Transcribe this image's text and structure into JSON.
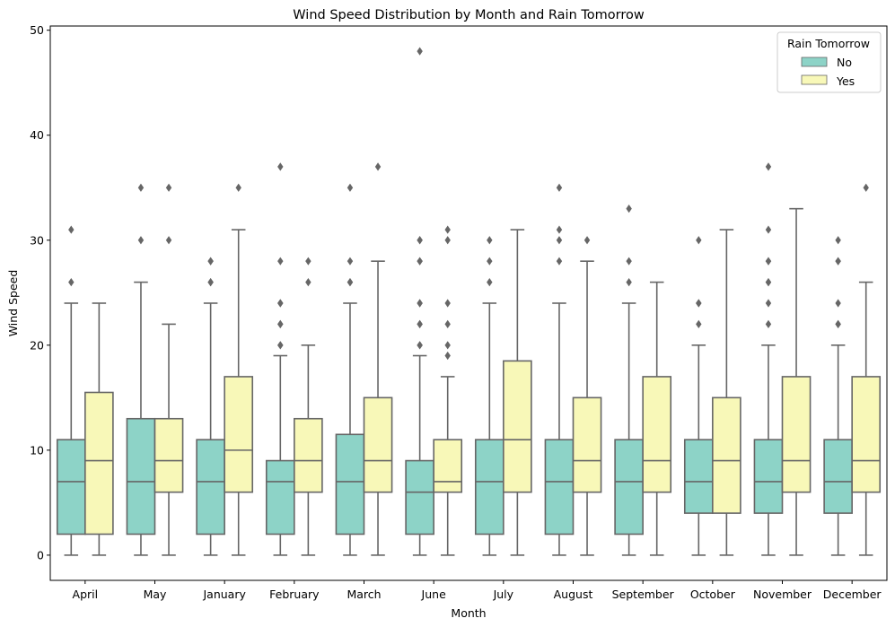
{
  "chart_data": {
    "type": "box",
    "title": "Wind Speed Distribution by Month and Rain Tomorrow",
    "xlabel": "Month",
    "ylabel": "Wind Speed",
    "ylim": [
      -2.4,
      50.4
    ],
    "yticks": [
      0,
      10,
      20,
      30,
      40,
      50
    ],
    "categories": [
      "April",
      "May",
      "January",
      "February",
      "March",
      "June",
      "July",
      "August",
      "September",
      "October",
      "November",
      "December"
    ],
    "legend": {
      "title": "Rain Tomorrow",
      "position": "top-right"
    },
    "grid": false,
    "series": [
      {
        "name": "No",
        "color": "#8dd3c7",
        "boxes": [
          {
            "whislo": 0,
            "q1": 2,
            "med": 7,
            "q3": 11,
            "whishi": 24,
            "fliers": [
              26,
              31
            ]
          },
          {
            "whislo": 0,
            "q1": 2,
            "med": 7,
            "q3": 13,
            "whishi": 26,
            "fliers": [
              30,
              35
            ]
          },
          {
            "whislo": 0,
            "q1": 2,
            "med": 7,
            "q3": 11,
            "whishi": 24,
            "fliers": [
              26,
              26,
              28,
              28
            ]
          },
          {
            "whislo": 0,
            "q1": 2,
            "med": 7,
            "q3": 9,
            "whishi": 19,
            "fliers": [
              20,
              20,
              22,
              22,
              24,
              24,
              28,
              37
            ]
          },
          {
            "whislo": 0,
            "q1": 2,
            "med": 7,
            "q3": 11.5,
            "whishi": 24,
            "fliers": [
              26,
              26,
              28,
              35
            ]
          },
          {
            "whislo": 0,
            "q1": 2,
            "med": 6,
            "q3": 9,
            "whishi": 19,
            "fliers": [
              20,
              20,
              22,
              22,
              24,
              24,
              28,
              28,
              30,
              30,
              48
            ]
          },
          {
            "whislo": 0,
            "q1": 2,
            "med": 7,
            "q3": 11,
            "whishi": 24,
            "fliers": [
              26,
              28,
              30
            ]
          },
          {
            "whislo": 0,
            "q1": 2,
            "med": 7,
            "q3": 11,
            "whishi": 24,
            "fliers": [
              28,
              30,
              31,
              35
            ]
          },
          {
            "whislo": 0,
            "q1": 2,
            "med": 7,
            "q3": 11,
            "whishi": 24,
            "fliers": [
              26,
              28,
              33
            ]
          },
          {
            "whislo": 0,
            "q1": 4,
            "med": 7,
            "q3": 11,
            "whishi": 20,
            "fliers": [
              22,
              24,
              24,
              30
            ]
          },
          {
            "whislo": 0,
            "q1": 4,
            "med": 7,
            "q3": 11,
            "whishi": 20,
            "fliers": [
              22,
              24,
              26,
              26,
              28,
              28,
              31,
              37
            ]
          },
          {
            "whislo": 0,
            "q1": 4,
            "med": 7,
            "q3": 11,
            "whishi": 20,
            "fliers": [
              22,
              22,
              24,
              28,
              28,
              30
            ]
          }
        ]
      },
      {
        "name": "Yes",
        "color": "#f8f8b8",
        "boxes": [
          {
            "whislo": 0,
            "q1": 2,
            "med": 9,
            "q3": 15.5,
            "whishi": 24,
            "fliers": []
          },
          {
            "whislo": 0,
            "q1": 6,
            "med": 9,
            "q3": 13,
            "whishi": 22,
            "fliers": [
              30,
              35
            ]
          },
          {
            "whislo": 0,
            "q1": 6,
            "med": 10,
            "q3": 17,
            "whishi": 31,
            "fliers": [
              35
            ]
          },
          {
            "whislo": 0,
            "q1": 6,
            "med": 9,
            "q3": 13,
            "whishi": 20,
            "fliers": [
              26,
              28
            ]
          },
          {
            "whislo": 0,
            "q1": 6,
            "med": 9,
            "q3": 15,
            "whishi": 28,
            "fliers": [
              37
            ]
          },
          {
            "whislo": 0,
            "q1": 6,
            "med": 7,
            "q3": 11,
            "whishi": 17,
            "fliers": [
              19,
              20,
              22,
              24,
              30,
              31
            ]
          },
          {
            "whislo": 0,
            "q1": 6,
            "med": 11,
            "q3": 18.5,
            "whishi": 31,
            "fliers": []
          },
          {
            "whislo": 0,
            "q1": 6,
            "med": 9,
            "q3": 15,
            "whishi": 28,
            "fliers": [
              30
            ]
          },
          {
            "whislo": 0,
            "q1": 6,
            "med": 9,
            "q3": 17,
            "whishi": 26,
            "fliers": []
          },
          {
            "whislo": 0,
            "q1": 4,
            "med": 9,
            "q3": 15,
            "whishi": 31,
            "fliers": []
          },
          {
            "whislo": 0,
            "q1": 6,
            "med": 9,
            "q3": 17,
            "whishi": 33,
            "fliers": []
          },
          {
            "whislo": 0,
            "q1": 6,
            "med": 9,
            "q3": 17,
            "whishi": 26,
            "fliers": [
              35
            ]
          }
        ]
      }
    ],
    "edge_color": "#666666"
  }
}
